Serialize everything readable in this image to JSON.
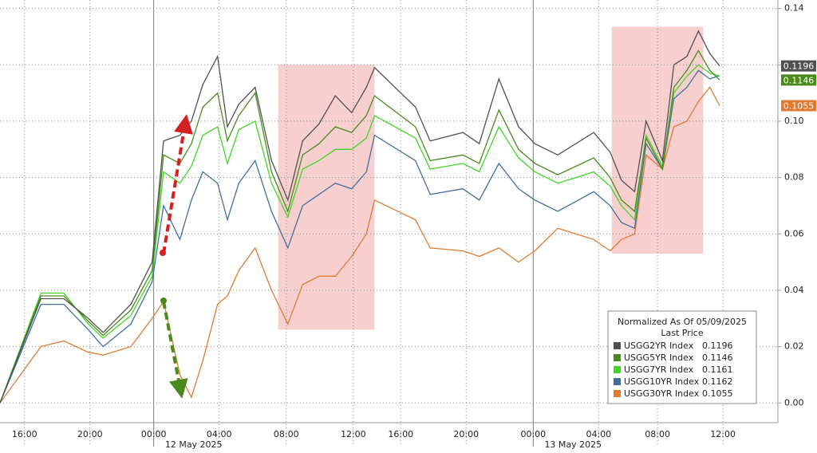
{
  "chart_data": {
    "type": "line",
    "x": [
      0,
      2.5,
      3.9,
      5.4,
      6.3,
      8,
      9.3,
      10,
      11,
      11.7,
      12.4,
      13.3,
      13.9,
      14.6,
      15.6,
      16.6,
      17.6,
      18.5,
      19.5,
      20.5,
      21.5,
      22.4,
      22.9,
      25.4,
      26.3,
      28.3,
      29.3,
      30.5,
      31.7,
      32.7,
      34.1,
      36.3,
      37.3,
      38,
      38.8,
      39.5,
      40.5,
      41.2,
      42,
      42.7,
      43.4,
      44
    ],
    "xlim": [
      0,
      47.56
    ],
    "xticks": [
      {
        "value": 1.5,
        "label": "16:00"
      },
      {
        "value": 5.5,
        "label": "20:00"
      },
      {
        "value": 9.4,
        "label": "00:00"
      },
      {
        "value": 13.4,
        "label": "04:00"
      },
      {
        "value": 17.5,
        "label": "08:00"
      },
      {
        "value": 21.6,
        "label": "12:00"
      },
      {
        "value": 24.5,
        "label": "16:00"
      },
      {
        "value": 28.5,
        "label": "20:00"
      },
      {
        "value": 32.6,
        "label": "00:00"
      },
      {
        "value": 36.6,
        "label": "04:00"
      },
      {
        "value": 40.2,
        "label": "08:00"
      },
      {
        "value": 44.2,
        "label": "12:00"
      }
    ],
    "date_labels": [
      "12 May 2025",
      "13 May 2025"
    ],
    "ylim": [
      -0.007,
      0.143
    ],
    "yticks": [
      {
        "value": 0,
        "label": "0.00"
      },
      {
        "value": 0.02,
        "label": "0.02"
      },
      {
        "value": 0.04,
        "label": "0.04"
      },
      {
        "value": 0.06,
        "label": "0.06"
      },
      {
        "value": 0.08,
        "label": "0.08"
      },
      {
        "value": 0.1,
        "label": "0.10"
      },
      {
        "value": 0.12,
        "label": "0.12"
      },
      {
        "value": 0.14,
        "label": "0.14"
      }
    ],
    "grid": true,
    "legend_title": [
      "Normalized As Of 05/09/2025",
      "Last Price"
    ],
    "legend_position": "lower right",
    "shaded_color": "#f7cfcf",
    "shaded_ranges": [
      {
        "x": [
          17,
          22.9
        ],
        "y": [
          0.026,
          0.12
        ]
      },
      {
        "x": [
          37.4,
          43
        ],
        "y": [
          0.053,
          0.1335
        ]
      }
    ],
    "series": [
      {
        "name": "USGG2YR Index",
        "color": "#505050",
        "last": 0.1196,
        "show_tag": true,
        "values": [
          0,
          0.037,
          0.037,
          0.03,
          0.025,
          0.035,
          0.05,
          0.093,
          0.095,
          0.1,
          0.113,
          0.123,
          0.098,
          0.106,
          0.112,
          0.086,
          0.072,
          0.093,
          0.099,
          0.109,
          0.103,
          0.112,
          0.119,
          0.105,
          0.093,
          0.096,
          0.092,
          0.115,
          0.098,
          0.092,
          0.088,
          0.096,
          0.089,
          0.079,
          0.075,
          0.1,
          0.086,
          0.12,
          0.123,
          0.132,
          0.124,
          0.1196
        ]
      },
      {
        "name": "USGG5YR Index",
        "color": "#4a8a1a",
        "last": 0.1146,
        "show_tag": true,
        "values": [
          0,
          0.038,
          0.038,
          0.029,
          0.024,
          0.033,
          0.047,
          0.088,
          0.085,
          0.092,
          0.105,
          0.11,
          0.093,
          0.102,
          0.11,
          0.082,
          0.068,
          0.088,
          0.092,
          0.098,
          0.096,
          0.102,
          0.109,
          0.098,
          0.086,
          0.088,
          0.085,
          0.104,
          0.09,
          0.085,
          0.081,
          0.087,
          0.08,
          0.072,
          0.068,
          0.094,
          0.083,
          0.112,
          0.118,
          0.125,
          0.118,
          0.1146
        ]
      },
      {
        "name": "USGG7YR Index",
        "color": "#3fd624",
        "last": 0.1161,
        "show_tag": false,
        "values": [
          0,
          0.039,
          0.039,
          0.028,
          0.023,
          0.031,
          0.045,
          0.082,
          0.078,
          0.084,
          0.095,
          0.098,
          0.085,
          0.097,
          0.1,
          0.078,
          0.066,
          0.083,
          0.086,
          0.09,
          0.09,
          0.094,
          0.102,
          0.094,
          0.083,
          0.085,
          0.082,
          0.098,
          0.087,
          0.082,
          0.078,
          0.082,
          0.077,
          0.07,
          0.065,
          0.095,
          0.084,
          0.11,
          0.116,
          0.12,
          0.117,
          0.1161
        ]
      },
      {
        "name": "USGG10YR Index",
        "color": "#3f6fa0",
        "last": 0.1162,
        "show_tag": false,
        "values": [
          0,
          0.035,
          0.035,
          0.026,
          0.02,
          0.028,
          0.043,
          0.07,
          0.058,
          0.072,
          0.082,
          0.078,
          0.065,
          0.078,
          0.086,
          0.068,
          0.055,
          0.07,
          0.074,
          0.078,
          0.076,
          0.082,
          0.095,
          0.086,
          0.074,
          0.076,
          0.072,
          0.085,
          0.076,
          0.072,
          0.068,
          0.075,
          0.07,
          0.064,
          0.062,
          0.092,
          0.083,
          0.108,
          0.112,
          0.118,
          0.115,
          0.1162
        ]
      },
      {
        "name": "USGG30YR Index",
        "color": "#e07a30",
        "last": 0.1055,
        "show_tag": true,
        "values": [
          0,
          0.02,
          0.022,
          0.018,
          0.017,
          0.02,
          0.03,
          0.036,
          0.01,
          0.002,
          0.015,
          0.035,
          0.038,
          0.047,
          0.055,
          0.04,
          0.028,
          0.042,
          0.045,
          0.045,
          0.052,
          0.06,
          0.072,
          0.065,
          0.055,
          0.054,
          0.052,
          0.055,
          0.05,
          0.054,
          0.062,
          0.058,
          0.054,
          0.058,
          0.06,
          0.088,
          0.083,
          0.098,
          0.1,
          0.107,
          0.112,
          0.1055
        ]
      }
    ]
  }
}
